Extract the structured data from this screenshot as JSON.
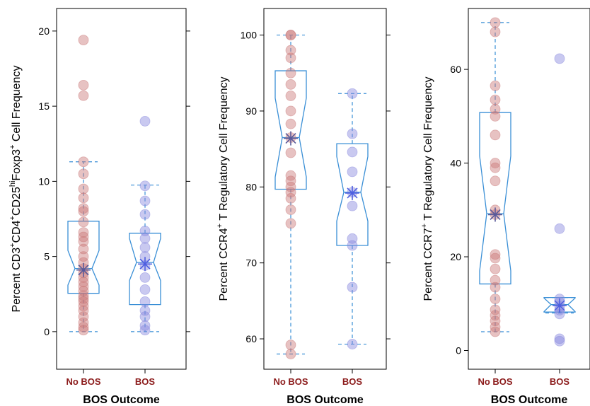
{
  "colors": {
    "no_bos_point": "#c97878",
    "bos_point": "#8888dd",
    "box": "#3a8fd6",
    "category_label": "#8b1a1a"
  },
  "chart_data": [
    {
      "type": "box",
      "ylabel_parts": [
        "Percent CD3",
        "+",
        "CD4",
        "+",
        "CD25",
        "hi",
        "Foxp3",
        "+",
        " Cell Frequency"
      ],
      "xlabel": "BOS Outcome",
      "categories": [
        "No BOS",
        "BOS"
      ],
      "ylim": [
        -2.5,
        21.5
      ],
      "yticks": [
        0,
        5,
        10,
        15,
        20
      ],
      "groups": [
        {
          "name": "No BOS",
          "whisker_low": 0,
          "q1": 2.55,
          "median": 4.2,
          "q3": 7.35,
          "whisker_high": 11.3,
          "notch_low": 3.1,
          "notch_high": 5.4,
          "mean": 4.1,
          "points": [
            19.4,
            16.4,
            15.7,
            11.3,
            10.5,
            9.5,
            8.9,
            8.2,
            8.0,
            7.3,
            6.6,
            6.3,
            6.0,
            5.5,
            5.0,
            4.6,
            4.2,
            3.9,
            3.6,
            3.3,
            3.0,
            2.7,
            2.4,
            2.2,
            2.0,
            1.7,
            1.4,
            1.0,
            0.6,
            0.3,
            0.1
          ]
        },
        {
          "name": "BOS",
          "whisker_low": 0,
          "q1": 1.8,
          "median": 4.6,
          "q3": 6.55,
          "whisker_high": 9.75,
          "notch_low": 3.4,
          "notch_high": 6.2,
          "mean": 4.5,
          "points": [
            14.0,
            9.7,
            8.7,
            7.8,
            6.7,
            6.2,
            5.6,
            5.0,
            4.4,
            3.6,
            2.8,
            2.0,
            1.4,
            1.0,
            0.4,
            0.1
          ]
        }
      ]
    },
    {
      "type": "box",
      "ylabel_parts": [
        "Percent CCR4",
        "+",
        " T Regulatory Cell Frequency"
      ],
      "xlabel": "BOS Outcome",
      "categories": [
        "No BOS",
        "BOS"
      ],
      "ylim": [
        56,
        103.5
      ],
      "yticks": [
        60,
        70,
        80,
        90,
        100
      ],
      "groups": [
        {
          "name": "No BOS",
          "whisker_low": 58,
          "q1": 79.7,
          "median": 86.5,
          "q3": 95.3,
          "whisker_high": 100,
          "notch_low": 81.3,
          "notch_high": 91.7,
          "mean": 86.4,
          "points": [
            100,
            100,
            98,
            97,
            95,
            93.5,
            92,
            90,
            88.3,
            86.5,
            84.5,
            81.5,
            80.8,
            80.0,
            79.3,
            78.5,
            77.0,
            75.2,
            59.2,
            58.0
          ]
        },
        {
          "name": "BOS",
          "whisker_low": 59.3,
          "q1": 72.3,
          "median": 79.3,
          "q3": 85.7,
          "whisker_high": 92.3,
          "notch_low": 75.5,
          "notch_high": 84.0,
          "mean": 79.2,
          "points": [
            92.3,
            87.0,
            84.6,
            82.0,
            79.3,
            77.5,
            73.2,
            72.3,
            66.8,
            59.3
          ]
        }
      ]
    },
    {
      "type": "box",
      "ylabel_parts": [
        "Percent CCR7",
        "+",
        " T Regulatory Cell Frequency"
      ],
      "xlabel": "BOS Outcome",
      "categories": [
        "No BOS",
        "BOS"
      ],
      "ylim": [
        -4,
        73
      ],
      "yticks": [
        0,
        20,
        40,
        60
      ],
      "groups": [
        {
          "name": "No BOS",
          "whisker_low": 4,
          "q1": 14.2,
          "median": 29.2,
          "q3": 50.8,
          "whisker_high": 70,
          "notch_low": 17.0,
          "notch_high": 41.5,
          "mean": 29.0,
          "points": [
            70,
            68,
            56.5,
            53.5,
            51.5,
            50,
            46,
            40,
            39,
            36.2,
            30,
            29,
            20.5,
            19.7,
            17.4,
            15.0,
            13.5,
            11,
            8.7,
            7.5,
            6.3,
            5.0,
            4.0
          ]
        },
        {
          "name": "BOS",
          "whisker_low": 8,
          "q1": 8.2,
          "median": 9.8,
          "q3": 11.3,
          "whisker_high": 11.3,
          "notch_low": 8.3,
          "notch_high": 11.2,
          "mean": 9.6,
          "points": [
            62.3,
            26.0,
            11.0,
            10.3,
            9.4,
            8.6,
            7.8,
            2.5,
            2.0
          ]
        }
      ]
    }
  ]
}
